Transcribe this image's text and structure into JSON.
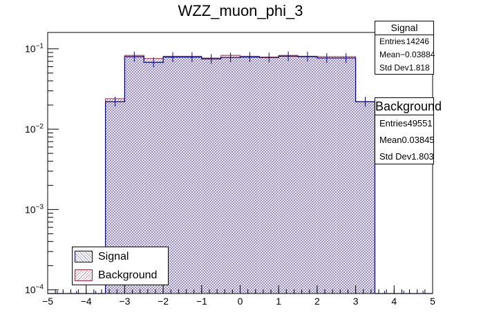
{
  "chart_data": {
    "type": "histogram",
    "title": "WZZ_muon_phi_3",
    "xlabel": "",
    "ylabel": "",
    "xlim": [
      -5,
      5
    ],
    "ylim": [
      9e-05,
      0.16
    ],
    "yscale": "log",
    "x_ticks": [
      "−5",
      "−4",
      "−3",
      "−2",
      "−1",
      "0",
      "1",
      "2",
      "3",
      "4",
      "5"
    ],
    "y_ticks": [
      {
        "value": 0.0001,
        "base": "10",
        "exp": "−4"
      },
      {
        "value": 0.001,
        "base": "10",
        "exp": "−3"
      },
      {
        "value": 0.01,
        "base": "10",
        "exp": "−2"
      },
      {
        "value": 0.1,
        "base": "10",
        "exp": "−1"
      }
    ],
    "bin_edges": [
      -5.0,
      -4.5,
      -4.0,
      -3.5,
      -3.0,
      -2.5,
      -2.0,
      -1.5,
      -1.0,
      -0.5,
      0.0,
      0.5,
      1.0,
      1.5,
      2.0,
      2.5,
      3.0,
      3.5,
      4.0,
      4.5,
      5.0
    ],
    "series": [
      {
        "name": "Signal",
        "color": "#000099",
        "style": "line-hatched",
        "values": [
          0,
          0,
          0,
          0.022,
          0.08,
          0.068,
          0.079,
          0.079,
          0.075,
          0.078,
          0.079,
          0.078,
          0.081,
          0.08,
          0.077,
          0.077,
          0.022,
          0,
          0,
          0
        ]
      },
      {
        "name": "Background",
        "color": "#99334d",
        "style": "filled-hatched",
        "values": [
          0,
          0,
          0,
          0.024,
          0.083,
          0.076,
          0.081,
          0.081,
          0.077,
          0.083,
          0.081,
          0.079,
          0.083,
          0.081,
          0.08,
          0.08,
          0.022,
          0,
          0,
          0
        ]
      }
    ]
  },
  "stats": {
    "signal": {
      "title": "Signal",
      "entries_label": "Entries",
      "entries": "14246",
      "mean_label": "Mean",
      "mean": "−0.03884",
      "std_label": "Std Dev",
      "std": "1.818"
    },
    "background": {
      "title": "Background",
      "entries_label": "Entries",
      "entries": "49551",
      "mean_label": "Mean",
      "mean": "0.03845",
      "std_label": "Std Dev",
      "std": "1.803"
    }
  },
  "legend": {
    "entries": [
      {
        "label": "Signal",
        "color": "#000099"
      },
      {
        "label": "Background",
        "color": "#99334d"
      }
    ]
  }
}
